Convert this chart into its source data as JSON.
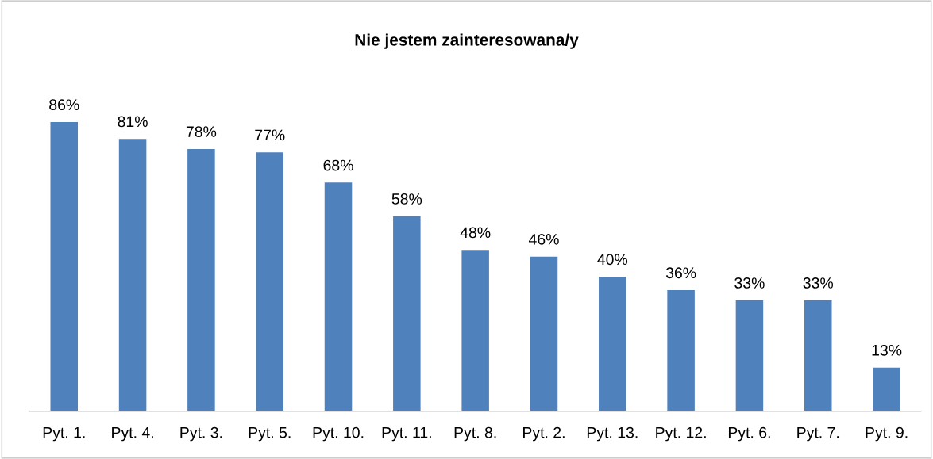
{
  "chart_data": {
    "type": "bar",
    "title": "Nie jestem zainteresowana/y",
    "categories": [
      "Pyt. 1.",
      "Pyt. 4.",
      "Pyt. 3.",
      "Pyt. 5.",
      "Pyt. 10.",
      "Pyt. 11.",
      "Pyt. 8.",
      "Pyt. 2.",
      "Pyt. 13.",
      "Pyt. 12.",
      "Pyt. 6.",
      "Pyt. 7.",
      "Pyt. 9."
    ],
    "values": [
      86,
      81,
      78,
      77,
      68,
      58,
      48,
      46,
      40,
      36,
      33,
      33,
      13
    ],
    "value_labels": [
      "86%",
      "81%",
      "78%",
      "77%",
      "68%",
      "58%",
      "48%",
      "46%",
      "40%",
      "36%",
      "33%",
      "33%",
      "13%"
    ],
    "color": "#4f81bd",
    "grid": false,
    "legend": false
  }
}
